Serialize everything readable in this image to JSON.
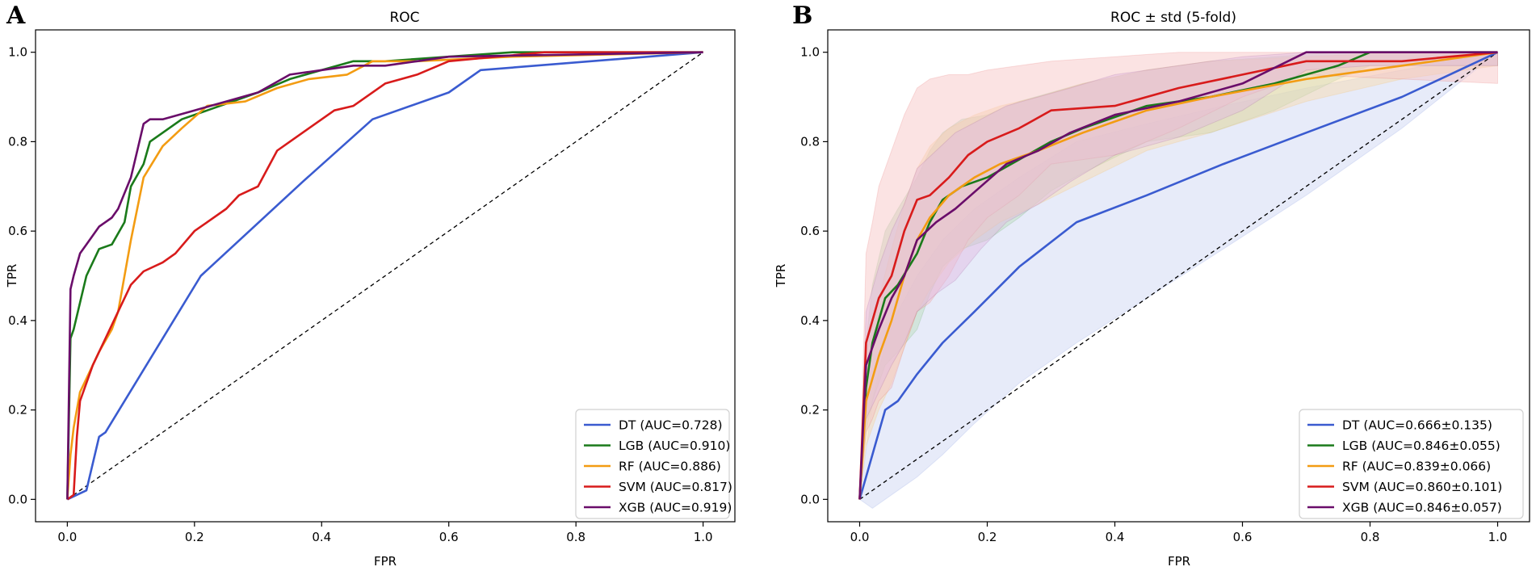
{
  "figure": {
    "panel_letters": [
      "A",
      "B"
    ]
  },
  "chart_data": [
    {
      "type": "line",
      "panel": "A",
      "title": "ROC",
      "xlabel": "FPR",
      "ylabel": "TPR",
      "xlim": [
        -0.05,
        1.05
      ],
      "ylim": [
        -0.05,
        1.05
      ],
      "xticks": [
        "0.0",
        "0.2",
        "0.4",
        "0.6",
        "0.8",
        "1.0"
      ],
      "yticks": [
        "0.0",
        "0.2",
        "0.4",
        "0.6",
        "0.8",
        "1.0"
      ],
      "legend_position": "lower-right",
      "diagonal": true,
      "series": [
        {
          "name": "DT",
          "legend": "DT (AUC=0.728)",
          "color": "#3a5bd0",
          "x": [
            0,
            0.03,
            0.05,
            0.06,
            0.21,
            0.37,
            0.48,
            0.6,
            0.65,
            1.0
          ],
          "y": [
            0,
            0.02,
            0.14,
            0.15,
            0.5,
            0.71,
            0.85,
            0.91,
            0.96,
            1.0
          ]
        },
        {
          "name": "LGB",
          "legend": "LGB (AUC=0.910)",
          "color": "#1a7a1a",
          "x": [
            0,
            0.005,
            0.01,
            0.02,
            0.03,
            0.05,
            0.07,
            0.09,
            0.1,
            0.12,
            0.13,
            0.15,
            0.18,
            0.22,
            0.26,
            0.3,
            0.35,
            0.4,
            0.45,
            0.5,
            0.6,
            0.7,
            1.0
          ],
          "y": [
            0,
            0.36,
            0.38,
            0.44,
            0.5,
            0.56,
            0.57,
            0.62,
            0.7,
            0.75,
            0.8,
            0.82,
            0.85,
            0.87,
            0.89,
            0.91,
            0.94,
            0.96,
            0.98,
            0.98,
            0.99,
            1.0,
            1.0
          ]
        },
        {
          "name": "RF",
          "legend": "RF (AUC=0.886)",
          "color": "#f39c12",
          "x": [
            0,
            0.005,
            0.01,
            0.02,
            0.03,
            0.05,
            0.07,
            0.08,
            0.1,
            0.12,
            0.15,
            0.18,
            0.22,
            0.28,
            0.33,
            0.38,
            0.44,
            0.48,
            0.55,
            0.7,
            1.0
          ],
          "y": [
            0,
            0.1,
            0.16,
            0.24,
            0.27,
            0.33,
            0.38,
            0.42,
            0.58,
            0.72,
            0.79,
            0.83,
            0.88,
            0.89,
            0.92,
            0.94,
            0.95,
            0.98,
            0.98,
            0.99,
            1.0
          ]
        },
        {
          "name": "SVM",
          "legend": "SVM (AUC=0.817)",
          "color": "#d81b1b",
          "x": [
            0,
            0.01,
            0.015,
            0.02,
            0.04,
            0.06,
            0.08,
            0.1,
            0.12,
            0.15,
            0.17,
            0.2,
            0.22,
            0.25,
            0.27,
            0.3,
            0.33,
            0.35,
            0.38,
            0.42,
            0.45,
            0.5,
            0.55,
            0.6,
            0.75,
            1.0
          ],
          "y": [
            0,
            0.01,
            0.14,
            0.22,
            0.3,
            0.36,
            0.42,
            0.48,
            0.51,
            0.53,
            0.55,
            0.6,
            0.62,
            0.65,
            0.68,
            0.7,
            0.78,
            0.8,
            0.83,
            0.87,
            0.88,
            0.93,
            0.95,
            0.98,
            1.0,
            1.0
          ]
        },
        {
          "name": "XGB",
          "legend": "XGB (AUC=0.919)",
          "color": "#6a0d6a",
          "x": [
            0,
            0.005,
            0.01,
            0.02,
            0.03,
            0.05,
            0.07,
            0.08,
            0.1,
            0.11,
            0.12,
            0.13,
            0.15,
            0.2,
            0.25,
            0.3,
            0.35,
            0.4,
            0.45,
            0.5,
            0.55,
            0.6,
            1.0
          ],
          "y": [
            0,
            0.47,
            0.5,
            0.55,
            0.57,
            0.61,
            0.63,
            0.65,
            0.72,
            0.78,
            0.84,
            0.85,
            0.85,
            0.87,
            0.89,
            0.91,
            0.95,
            0.96,
            0.97,
            0.97,
            0.98,
            0.99,
            1.0
          ]
        }
      ],
      "legend_entries": [
        "DT (AUC=0.728)",
        "LGB (AUC=0.910)",
        "RF (AUC=0.886)",
        "SVM (AUC=0.817)",
        "XGB (AUC=0.919)"
      ]
    },
    {
      "type": "line",
      "panel": "B",
      "title": "ROC ± std (5-fold)",
      "xlabel": "FPR",
      "ylabel": "TPR",
      "xlim": [
        -0.05,
        1.05
      ],
      "ylim": [
        -0.05,
        1.05
      ],
      "xticks": [
        "0.0",
        "0.2",
        "0.4",
        "0.6",
        "0.8",
        "1.0"
      ],
      "yticks": [
        "0.0",
        "0.2",
        "0.4",
        "0.6",
        "0.8",
        "1.0"
      ],
      "legend_position": "lower-right",
      "diagonal": true,
      "series": [
        {
          "name": "DT",
          "legend": "DT (AUC=0.666±0.135)",
          "color": "#3a5bd0",
          "band_color": "#c9d3f2",
          "x": [
            0,
            0.02,
            0.04,
            0.06,
            0.09,
            0.13,
            0.18,
            0.25,
            0.34,
            0.45,
            0.57,
            0.7,
            0.85,
            1.0
          ],
          "y": [
            0,
            0.1,
            0.2,
            0.22,
            0.28,
            0.35,
            0.42,
            0.52,
            0.62,
            0.68,
            0.75,
            0.82,
            0.9,
            1.0
          ],
          "upper": [
            0,
            0.22,
            0.35,
            0.42,
            0.5,
            0.58,
            0.65,
            0.72,
            0.8,
            0.84,
            0.88,
            0.92,
            0.96,
            1.0
          ],
          "lower": [
            0,
            -0.02,
            0.0,
            0.02,
            0.05,
            0.1,
            0.17,
            0.26,
            0.35,
            0.45,
            0.56,
            0.68,
            0.83,
            1.0
          ]
        },
        {
          "name": "LGB",
          "legend": "LGB (AUC=0.846±0.055)",
          "color": "#1a7a1a",
          "band_color": "#b9dcb9",
          "x": [
            0,
            0.01,
            0.02,
            0.04,
            0.06,
            0.09,
            0.11,
            0.13,
            0.16,
            0.2,
            0.25,
            0.3,
            0.35,
            0.45,
            0.55,
            0.65,
            0.75,
            0.8,
            1.0
          ],
          "y": [
            0,
            0.25,
            0.35,
            0.45,
            0.48,
            0.55,
            0.62,
            0.67,
            0.7,
            0.72,
            0.76,
            0.8,
            0.83,
            0.88,
            0.9,
            0.93,
            0.97,
            1.0,
            1.0
          ],
          "upper": [
            0,
            0.35,
            0.48,
            0.6,
            0.65,
            0.72,
            0.78,
            0.82,
            0.85,
            0.86,
            0.89,
            0.91,
            0.93,
            0.96,
            0.98,
            0.99,
            1.0,
            1.0,
            1.0
          ],
          "lower": [
            0,
            0.15,
            0.22,
            0.3,
            0.33,
            0.38,
            0.46,
            0.52,
            0.56,
            0.58,
            0.63,
            0.69,
            0.73,
            0.8,
            0.82,
            0.87,
            0.94,
            0.97,
            0.97
          ]
        },
        {
          "name": "RF",
          "legend": "RF (AUC=0.839±0.066)",
          "color": "#f39c12",
          "band_color": "#f8d9a8",
          "x": [
            0,
            0.01,
            0.03,
            0.05,
            0.07,
            0.09,
            0.11,
            0.14,
            0.18,
            0.22,
            0.28,
            0.35,
            0.45,
            0.55,
            0.7,
            0.85,
            1.0
          ],
          "y": [
            0,
            0.22,
            0.32,
            0.4,
            0.5,
            0.58,
            0.63,
            0.68,
            0.72,
            0.75,
            0.78,
            0.82,
            0.87,
            0.9,
            0.94,
            0.97,
            1.0
          ],
          "upper": [
            0,
            0.32,
            0.45,
            0.56,
            0.66,
            0.74,
            0.79,
            0.83,
            0.86,
            0.88,
            0.9,
            0.93,
            0.96,
            0.98,
            0.99,
            1.0,
            1.0
          ],
          "lower": [
            0,
            0.12,
            0.2,
            0.26,
            0.34,
            0.42,
            0.47,
            0.53,
            0.58,
            0.62,
            0.66,
            0.71,
            0.78,
            0.82,
            0.89,
            0.94,
            0.97
          ]
        },
        {
          "name": "SVM",
          "legend": "SVM (AUC=0.860±0.101)",
          "color": "#d81b1b",
          "band_color": "#f7c2c2",
          "x": [
            0,
            0.01,
            0.02,
            0.03,
            0.05,
            0.07,
            0.09,
            0.11,
            0.14,
            0.17,
            0.2,
            0.25,
            0.3,
            0.4,
            0.5,
            0.6,
            0.7,
            0.85,
            1.0
          ],
          "y": [
            0,
            0.35,
            0.4,
            0.45,
            0.5,
            0.6,
            0.67,
            0.68,
            0.72,
            0.77,
            0.8,
            0.83,
            0.87,
            0.88,
            0.92,
            0.95,
            0.98,
            0.98,
            1.0
          ],
          "upper": [
            0,
            0.55,
            0.62,
            0.7,
            0.78,
            0.86,
            0.92,
            0.94,
            0.95,
            0.95,
            0.96,
            0.97,
            0.98,
            0.99,
            1.0,
            1.0,
            1.0,
            1.0,
            1.0
          ],
          "lower": [
            0,
            0.15,
            0.18,
            0.22,
            0.25,
            0.34,
            0.42,
            0.44,
            0.5,
            0.58,
            0.63,
            0.68,
            0.75,
            0.77,
            0.83,
            0.9,
            0.95,
            0.94,
            0.93
          ]
        },
        {
          "name": "XGB",
          "legend": "XGB (AUC=0.846±0.057)",
          "color": "#6a0d6a",
          "band_color": "#e0b9e0",
          "x": [
            0,
            0.01,
            0.03,
            0.05,
            0.07,
            0.09,
            0.12,
            0.15,
            0.19,
            0.23,
            0.28,
            0.33,
            0.4,
            0.5,
            0.6,
            0.7,
            0.8,
            1.0
          ],
          "y": [
            0,
            0.3,
            0.38,
            0.45,
            0.5,
            0.58,
            0.62,
            0.65,
            0.7,
            0.75,
            0.78,
            0.82,
            0.86,
            0.89,
            0.93,
            1.0,
            1.0,
            1.0
          ],
          "upper": [
            0,
            0.42,
            0.52,
            0.6,
            0.66,
            0.74,
            0.78,
            0.82,
            0.85,
            0.88,
            0.9,
            0.92,
            0.95,
            0.97,
            0.99,
            1.0,
            1.0,
            1.0
          ],
          "lower": [
            0,
            0.18,
            0.24,
            0.3,
            0.35,
            0.42,
            0.46,
            0.49,
            0.56,
            0.62,
            0.66,
            0.71,
            0.77,
            0.81,
            0.87,
            0.96,
            0.97,
            0.97
          ]
        }
      ],
      "legend_entries": [
        "DT (AUC=0.666±0.135)",
        "LGB (AUC=0.846±0.055)",
        "RF (AUC=0.839±0.066)",
        "SVM (AUC=0.860±0.101)",
        "XGB (AUC=0.846±0.057)"
      ]
    }
  ]
}
